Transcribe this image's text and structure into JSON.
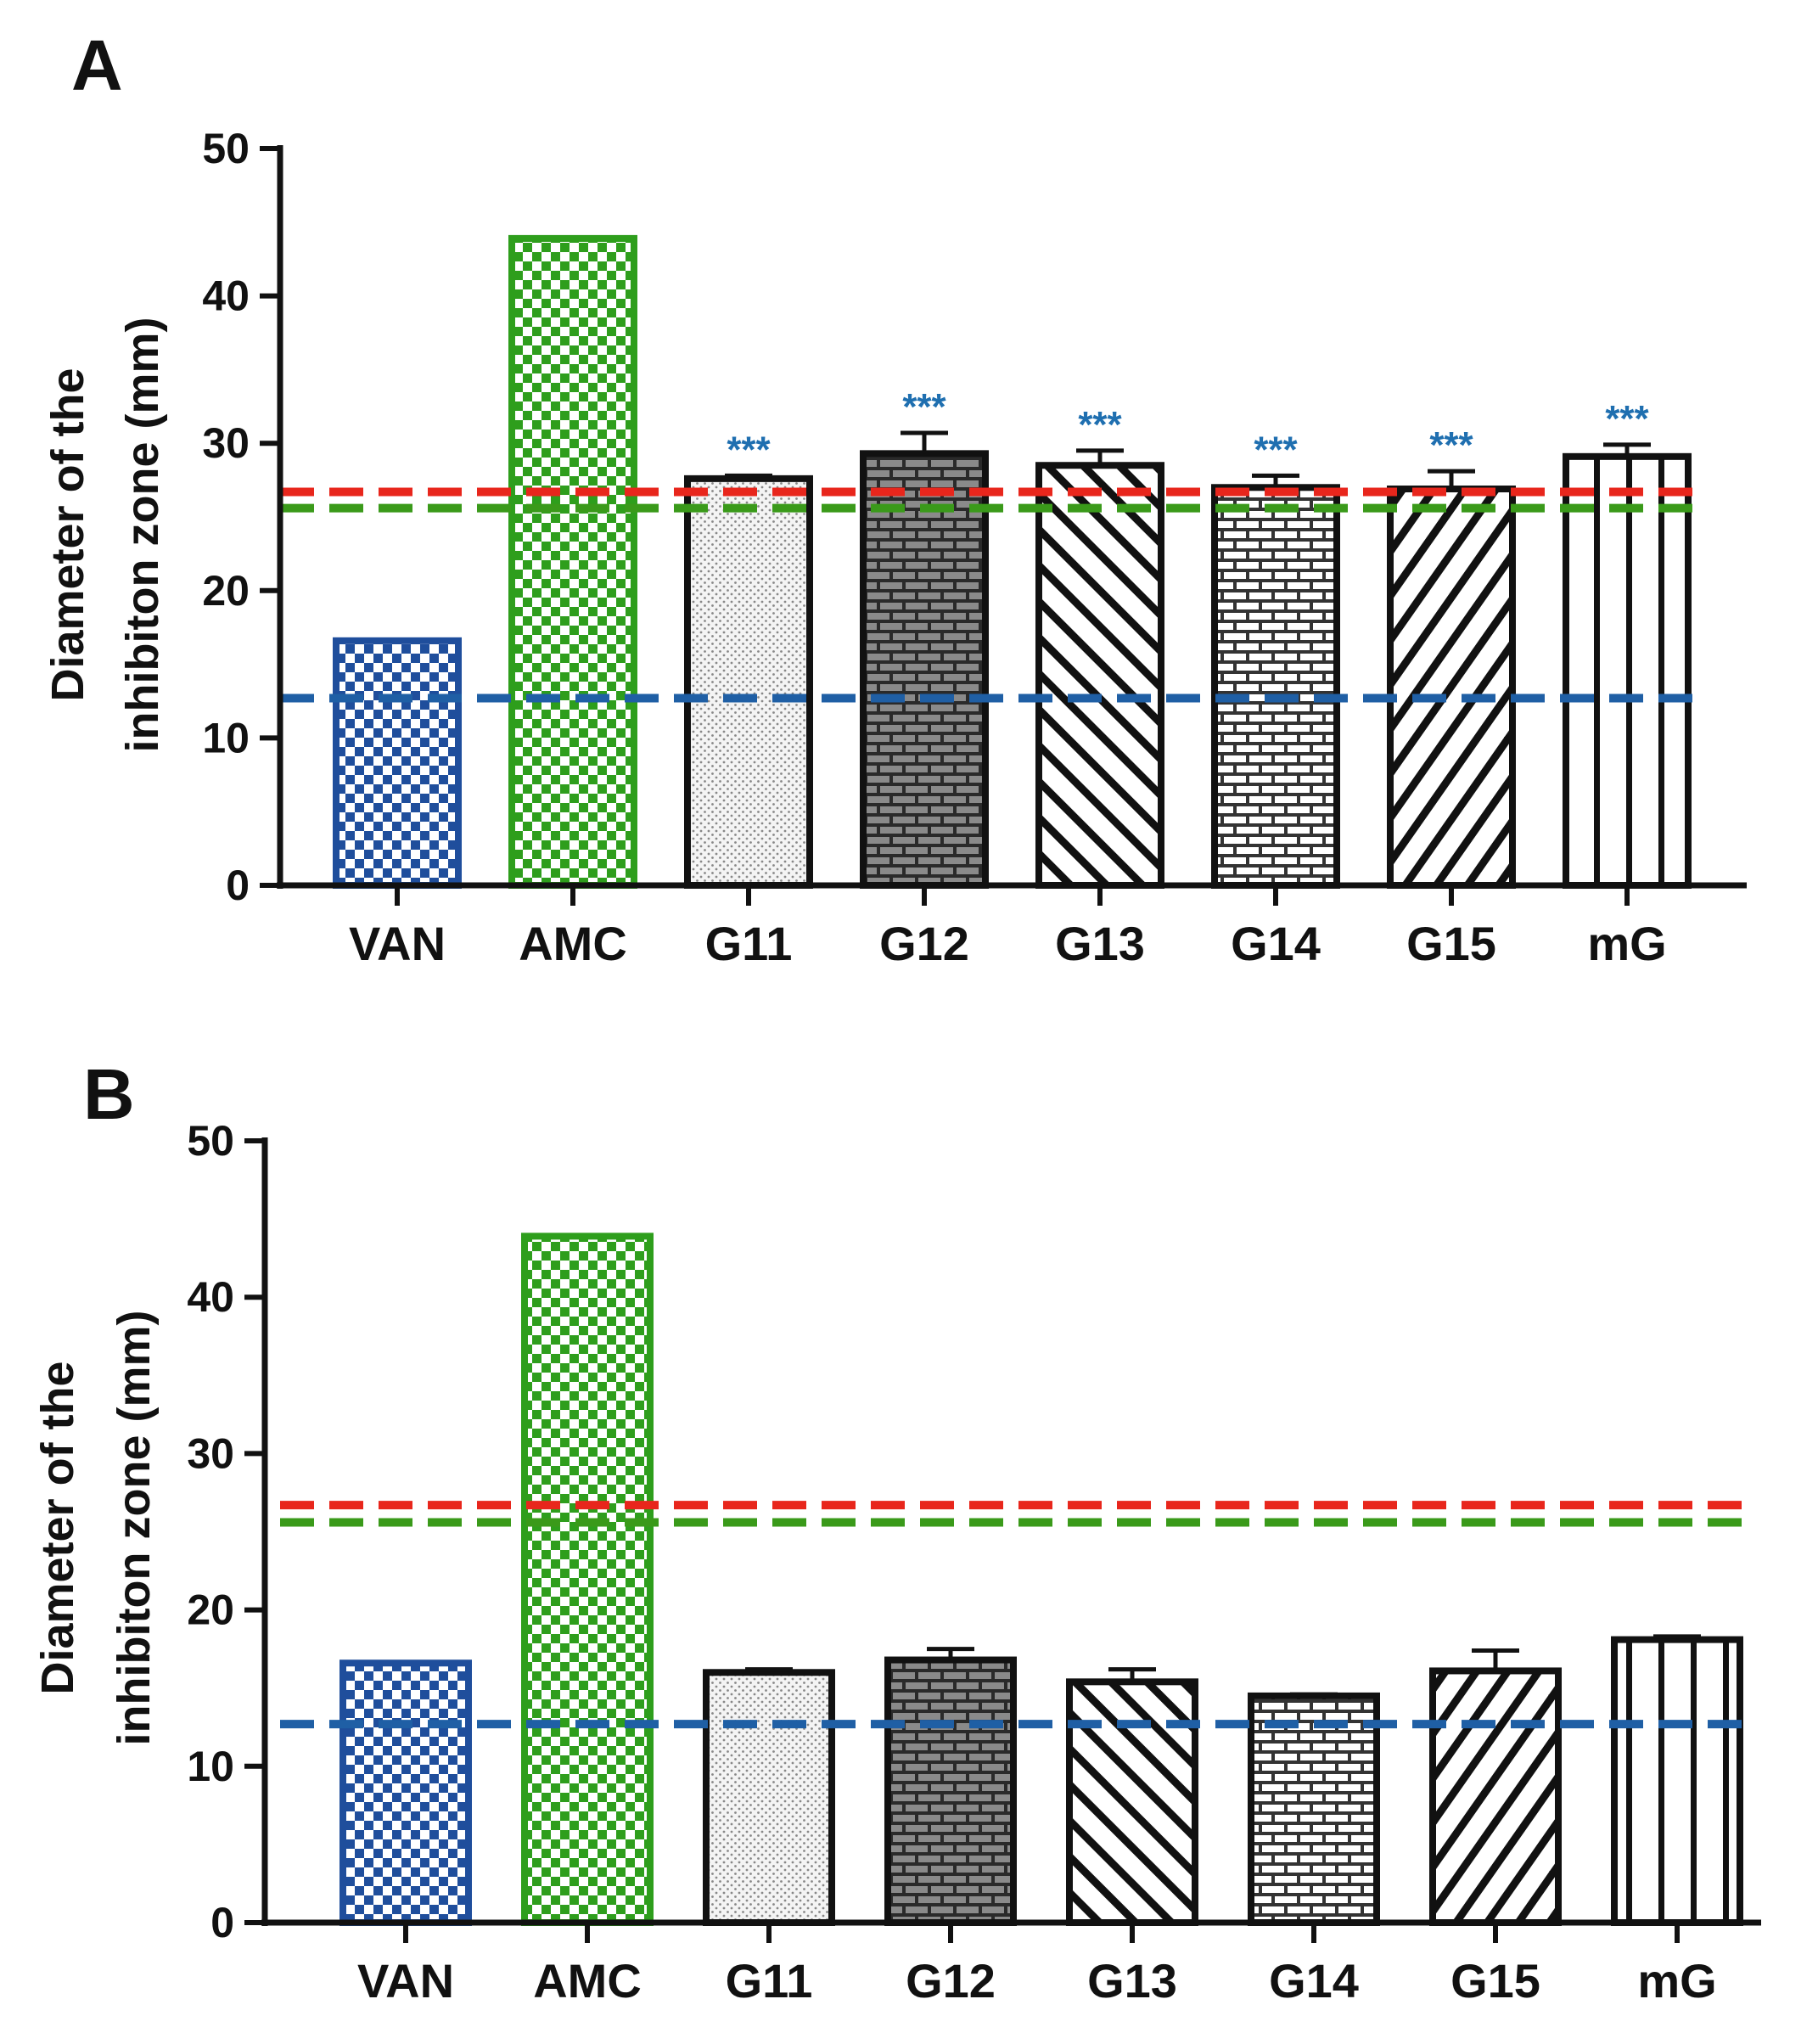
{
  "colors": {
    "van": "#1f4e9c",
    "amc": "#2e9e1c",
    "red_line": "#e8261c",
    "green_line": "#3a9a1a",
    "blue_line": "#1f5fa5",
    "sig": "#1f6fb0",
    "black": "#111111"
  },
  "chart_data": [
    {
      "panel": "A",
      "type": "bar",
      "ylabel_line1": "Diameter of the",
      "ylabel_line2": "inhibiton zone (mm)",
      "ylim": [
        0,
        50
      ],
      "yticks": [
        "0",
        "10",
        "20",
        "30",
        "40",
        "50"
      ],
      "categories": [
        "VAN",
        "AMC",
        "G11",
        "G12",
        "G13",
        "G14",
        "G15",
        "mG"
      ],
      "values": [
        16.6,
        43.9,
        27.6,
        29.3,
        28.5,
        27.0,
        26.9,
        29.1
      ],
      "errors": [
        0,
        0,
        0.2,
        1.4,
        1.0,
        0.8,
        1.2,
        0.8
      ],
      "patterns": [
        "van-check",
        "amc-check",
        "dots",
        "brick-dark",
        "diag-back",
        "brick-light",
        "diag-fwd",
        "vertical"
      ],
      "significance": [
        "",
        "",
        "***",
        "***",
        "***",
        "***",
        "***",
        "***"
      ],
      "reference_lines": [
        {
          "name": "red",
          "value": 26.7
        },
        {
          "name": "green",
          "value": 25.6
        },
        {
          "name": "blue",
          "value": 12.7
        }
      ]
    },
    {
      "panel": "B",
      "type": "bar",
      "ylabel_line1": "Diameter of the",
      "ylabel_line2": "inhibiton zone (mm)",
      "ylim": [
        0,
        50
      ],
      "yticks": [
        "0",
        "10",
        "20",
        "30",
        "40",
        "50"
      ],
      "categories": [
        "VAN",
        "AMC",
        "G11",
        "G12",
        "G13",
        "G14",
        "G15",
        "mG"
      ],
      "values": [
        16.6,
        43.9,
        16.0,
        16.8,
        15.4,
        14.5,
        16.1,
        18.1
      ],
      "errors": [
        0,
        0,
        0.2,
        0.7,
        0.8,
        0.1,
        1.3,
        0.2
      ],
      "patterns": [
        "van-check",
        "amc-check",
        "dots",
        "brick-dark",
        "diag-back",
        "brick-light",
        "diag-fwd",
        "vertical"
      ],
      "significance": [
        "",
        "",
        "",
        "",
        "",
        "",
        "",
        ""
      ],
      "reference_lines": [
        {
          "name": "red",
          "value": 26.7
        },
        {
          "name": "green",
          "value": 25.6
        },
        {
          "name": "blue",
          "value": 12.7
        }
      ]
    }
  ]
}
